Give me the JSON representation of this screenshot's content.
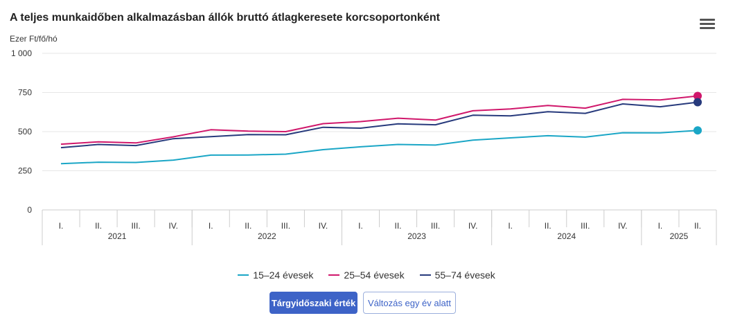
{
  "header": {
    "title": "A teljes munkaidőben alkalmazásban állók bruttó átlagkeresete korcsoportonként",
    "menu_icon": "hamburger-menu-icon"
  },
  "buttons": {
    "primary_label": "Tárgyidőszaki érték",
    "secondary_label": "Változás egy év alatt"
  },
  "colors": {
    "series_15_24": "#1aa6c6",
    "series_25_54": "#d0176b",
    "series_55_74": "#273a7c",
    "button_primary": "#3d63c7"
  },
  "chart_data": {
    "type": "line",
    "title": "A teljes munkaidőben alkalmazásban állók bruttó átlagkeresete korcsoportonként",
    "ylabel": "Ezer Ft/fő/hó",
    "xlabel": "",
    "ylim": [
      0,
      1000
    ],
    "yticks": [
      "0",
      "250",
      "500",
      "750",
      "1 000"
    ],
    "ytick_values": [
      0,
      250,
      500,
      750,
      1000
    ],
    "quarters": [
      "I.",
      "II.",
      "III.",
      "IV.",
      "I.",
      "II.",
      "III.",
      "IV.",
      "I.",
      "II.",
      "III.",
      "IV.",
      "I.",
      "II.",
      "III.",
      "IV.",
      "I.",
      "II."
    ],
    "years": [
      {
        "label": "2021",
        "quarters": 4
      },
      {
        "label": "2022",
        "quarters": 4
      },
      {
        "label": "2023",
        "quarters": 4
      },
      {
        "label": "2024",
        "quarters": 4
      },
      {
        "label": "2025",
        "quarters": 2
      }
    ],
    "grid": true,
    "legend_position": "bottom-center",
    "series": [
      {
        "name": "15–24 évesek",
        "color": "#1aa6c6",
        "values": [
          295,
          305,
          303,
          318,
          350,
          351,
          356,
          385,
          403,
          418,
          414,
          446,
          460,
          474,
          465,
          493,
          492,
          508
        ]
      },
      {
        "name": "25–54 évesek",
        "color": "#d0176b",
        "values": [
          420,
          435,
          428,
          467,
          512,
          503,
          500,
          551,
          564,
          586,
          574,
          633,
          645,
          667,
          650,
          706,
          702,
          728
        ]
      },
      {
        "name": "55–74 évesek",
        "color": "#273a7c",
        "values": [
          398,
          418,
          411,
          455,
          468,
          481,
          480,
          528,
          522,
          550,
          544,
          605,
          601,
          627,
          617,
          677,
          659,
          688
        ]
      }
    ]
  }
}
